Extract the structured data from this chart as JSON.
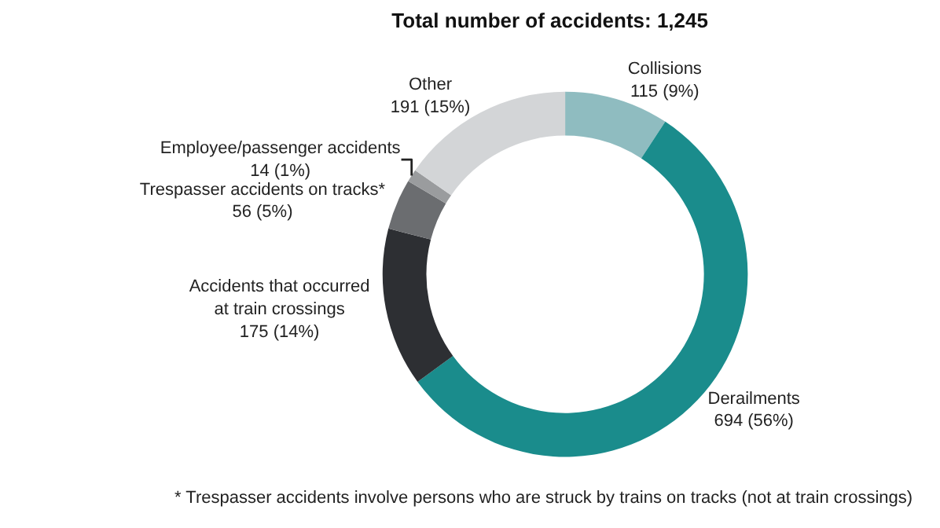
{
  "chart_data": {
    "type": "donut",
    "title": "Total number of accidents: 1,245",
    "categories": [
      "Collisions",
      "Derailments",
      "Accidents that occurred at train crossings",
      "Trespasser accidents on tracks*",
      "Employee/passenger accidents",
      "Other"
    ],
    "values": [
      115,
      694,
      175,
      56,
      14,
      191
    ],
    "value_labels": [
      "115 (9%)",
      "694 (56%)",
      "175 (14%)",
      "56 (5%)",
      "14 (1%)",
      "191 (15%)"
    ],
    "colors": [
      "#8fbcc0",
      "#1a8c8c",
      "#2d2f33",
      "#6b6d70",
      "#9a9c9e",
      "#d3d5d7"
    ],
    "annotations": [
      "* Trespasser accidents involve persons who are struck by trains on tracks (not at train crossings)"
    ],
    "legend": false
  }
}
